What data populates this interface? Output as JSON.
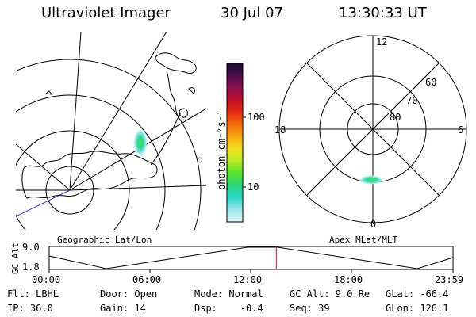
{
  "header": {
    "title": "Ultraviolet Imager",
    "date": "30 Jul 07",
    "time": "13:30:33 UT"
  },
  "colorbar": {
    "unit_label": "photon cm⁻²s⁻¹",
    "ticks": [
      "100",
      "10"
    ],
    "colors": [
      "#1a0a2e",
      "#4b0d4d",
      "#8b0f4d",
      "#c0102a",
      "#e62b12",
      "#f26b0a",
      "#f7a70f",
      "#f2e01e",
      "#b9ee22",
      "#55e22a",
      "#2ad67a",
      "#2ad6c7",
      "#9ee9ea",
      "#dff5f5"
    ]
  },
  "left_map": {
    "caption": "Geographic Lat/Lon"
  },
  "right_map": {
    "caption": "Apex MLat/MLT",
    "mlt_labels": {
      "top": "12",
      "left": "18",
      "right": "6",
      "bottom": "0"
    },
    "lat_labels": [
      "60",
      "70",
      "80"
    ]
  },
  "timeline": {
    "ylabel": "GC Alt",
    "yticks": [
      "9.0",
      "1.8"
    ],
    "xticks": [
      "00:00",
      "06:00",
      "12:00",
      "18:00",
      "23:59"
    ],
    "current_time_fraction": 0.5625
  },
  "info": {
    "row1": [
      "Flt: LBHL",
      "Door: Open",
      "Mode: Normal",
      "GC Alt: 9.0 Re",
      "GLat: -66.4"
    ],
    "row2": [
      "IP: 36.0",
      "Gain: 14",
      "Dsp:    -0.4",
      "Seq: 39",
      "GLon: 126.1"
    ]
  }
}
